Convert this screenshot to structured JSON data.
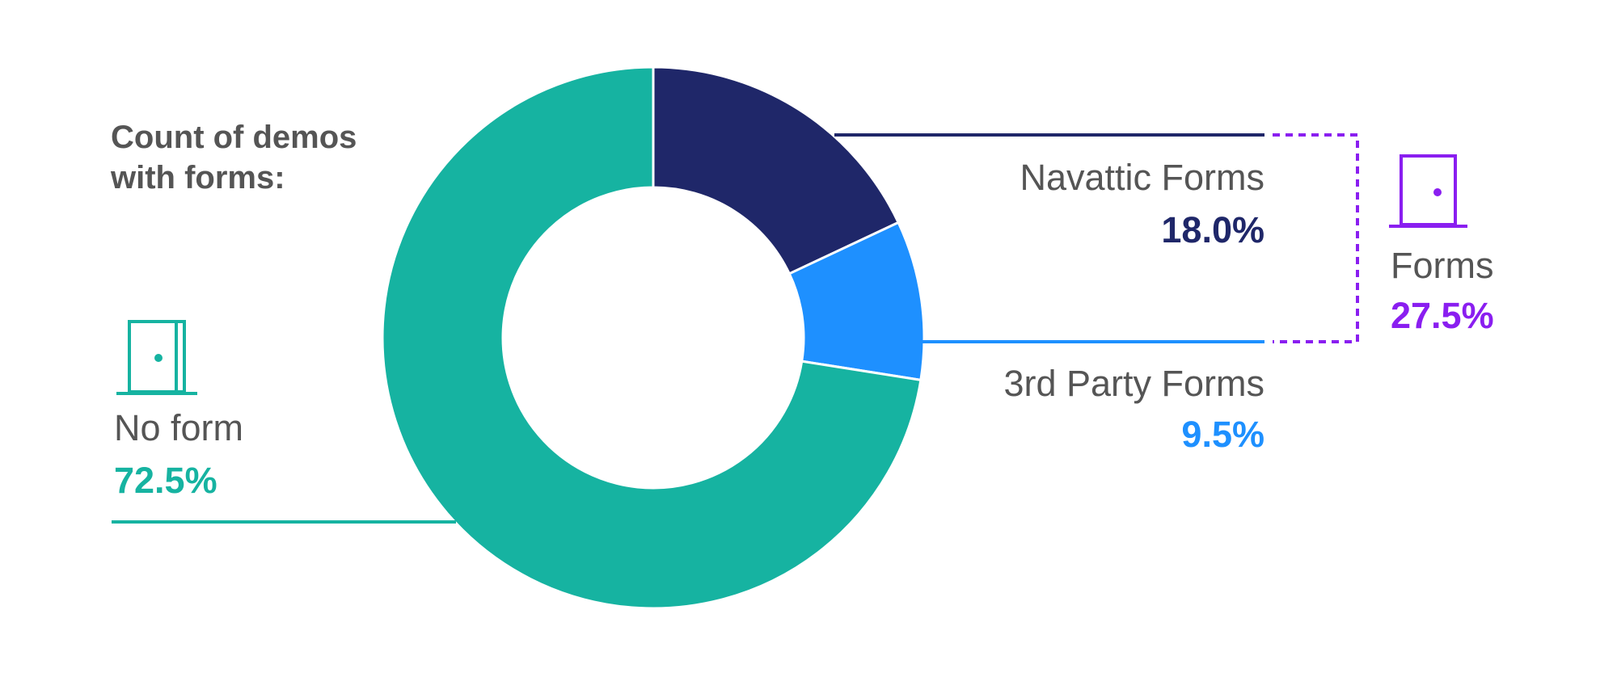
{
  "chart_data": {
    "type": "donut",
    "title": "Count of demos with forms:",
    "categories": [
      "Navattic Forms",
      "3rd Party Forms",
      "No form"
    ],
    "values": [
      18.0,
      9.5,
      72.5
    ],
    "value_labels": [
      "18.0%",
      "9.5%",
      "72.5%"
    ],
    "colors": [
      "#1f2769",
      "#1e90ff",
      "#16b3a1"
    ],
    "group": {
      "name": "Forms",
      "value": 27.5,
      "value_label": "27.5%",
      "color": "#8a1ef0"
    }
  }
}
